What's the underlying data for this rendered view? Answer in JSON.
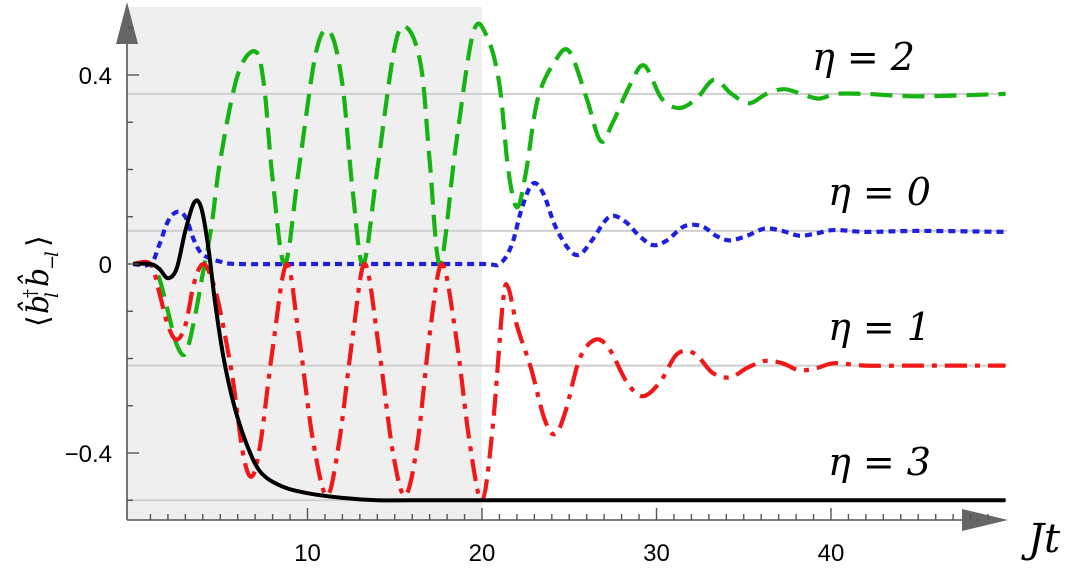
{
  "chart_data": {
    "type": "line",
    "xlabel": "Jt",
    "ylabel": "⟨b̂†_l b̂_−l⟩",
    "xlim": [
      0,
      50
    ],
    "ylim": [
      -0.56,
      0.53
    ],
    "x_ticks": [
      10,
      20,
      30,
      40
    ],
    "x_tick_labels": [
      "10",
      "20",
      "30",
      "40"
    ],
    "y_ticks": [
      -0.4,
      0,
      0.4
    ],
    "y_tick_labels": [
      "−0.4",
      "0",
      "0.4"
    ],
    "shaded_region": {
      "x_range": [
        0,
        20
      ],
      "color": "#efefef"
    },
    "grid": false,
    "series": [
      {
        "name": "η = 2",
        "label_text": "η = 2",
        "color": "#17b312",
        "style": "dashed",
        "steady_state": 0.36,
        "points": [
          [
            0,
            0
          ],
          [
            1,
            0
          ],
          [
            1.5,
            -0.03
          ],
          [
            2,
            -0.1
          ],
          [
            2.5,
            -0.17
          ],
          [
            3,
            -0.19
          ],
          [
            3.5,
            -0.12
          ],
          [
            4,
            -0.02
          ],
          [
            4.5,
            0.08
          ],
          [
            5,
            0.22
          ],
          [
            6,
            0.4
          ],
          [
            7,
            0.45
          ],
          [
            7.5,
            0.38
          ],
          [
            8,
            0.18
          ],
          [
            8.7,
            0.0
          ],
          [
            9.5,
            0.2
          ],
          [
            10.5,
            0.45
          ],
          [
            11.3,
            0.49
          ],
          [
            12,
            0.38
          ],
          [
            12.6,
            0.15
          ],
          [
            13.2,
            0.0
          ],
          [
            14,
            0.2
          ],
          [
            15,
            0.46
          ],
          [
            15.7,
            0.5
          ],
          [
            16.5,
            0.42
          ],
          [
            17,
            0.22
          ],
          [
            17.6,
            0.0
          ],
          [
            18.5,
            0.25
          ],
          [
            19.5,
            0.49
          ],
          [
            20.3,
            0.48
          ],
          [
            21,
            0.38
          ],
          [
            21.5,
            0.2
          ],
          [
            22,
            0.12
          ],
          [
            22.5,
            0.19
          ],
          [
            23.2,
            0.35
          ],
          [
            24.2,
            0.43
          ],
          [
            25,
            0.45
          ],
          [
            26,
            0.35
          ],
          [
            26.8,
            0.26
          ],
          [
            27.5,
            0.3
          ],
          [
            28.5,
            0.38
          ],
          [
            29.3,
            0.42
          ],
          [
            30.3,
            0.35
          ],
          [
            31.3,
            0.33
          ],
          [
            32.3,
            0.35
          ],
          [
            33.3,
            0.39
          ],
          [
            34.3,
            0.36
          ],
          [
            35.3,
            0.34
          ],
          [
            36.3,
            0.36
          ],
          [
            37.3,
            0.37
          ],
          [
            38.3,
            0.36
          ],
          [
            39.3,
            0.35
          ],
          [
            40.3,
            0.36
          ],
          [
            42,
            0.36
          ],
          [
            45,
            0.355
          ],
          [
            50,
            0.36
          ]
        ]
      },
      {
        "name": "η = 0",
        "label_text": "η = 0",
        "color": "#1f1fe0",
        "style": "dotted",
        "steady_state": 0.07,
        "points": [
          [
            0,
            0
          ],
          [
            1,
            0
          ],
          [
            1.5,
            0.04
          ],
          [
            2,
            0.09
          ],
          [
            2.5,
            0.11
          ],
          [
            3,
            0.1
          ],
          [
            3.5,
            0.05
          ],
          [
            4,
            0.02
          ],
          [
            5,
            0.005
          ],
          [
            6,
            0.0
          ],
          [
            10,
            0.0
          ],
          [
            15,
            0.0
          ],
          [
            20,
            0.0
          ],
          [
            21,
            0.0
          ],
          [
            21.7,
            0.04
          ],
          [
            22.3,
            0.12
          ],
          [
            22.9,
            0.17
          ],
          [
            23.5,
            0.15
          ],
          [
            24.2,
            0.08
          ],
          [
            25,
            0.03
          ],
          [
            25.6,
            0.02
          ],
          [
            26.3,
            0.05
          ],
          [
            27.3,
            0.1
          ],
          [
            28.2,
            0.09
          ],
          [
            29,
            0.06
          ],
          [
            29.8,
            0.04
          ],
          [
            30.6,
            0.05
          ],
          [
            31.6,
            0.08
          ],
          [
            32.6,
            0.08
          ],
          [
            33.4,
            0.06
          ],
          [
            34.2,
            0.05
          ],
          [
            35.2,
            0.06
          ],
          [
            36.2,
            0.075
          ],
          [
            37.2,
            0.07
          ],
          [
            38.2,
            0.06
          ],
          [
            39.2,
            0.065
          ],
          [
            40.2,
            0.072
          ],
          [
            42,
            0.068
          ],
          [
            45,
            0.07
          ],
          [
            50,
            0.068
          ]
        ]
      },
      {
        "name": "η = 1",
        "label_text": "η = 1",
        "color": "#f01818",
        "style": "dashdot",
        "steady_state": -0.215,
        "points": [
          [
            0,
            0
          ],
          [
            1,
            0
          ],
          [
            1.5,
            -0.06
          ],
          [
            2,
            -0.13
          ],
          [
            2.5,
            -0.16
          ],
          [
            3,
            -0.13
          ],
          [
            3.5,
            -0.04
          ],
          [
            4,
            0.0
          ],
          [
            4.5,
            -0.03
          ],
          [
            5,
            -0.1
          ],
          [
            5.7,
            -0.24
          ],
          [
            6.3,
            -0.4
          ],
          [
            6.8,
            -0.45
          ],
          [
            7.3,
            -0.38
          ],
          [
            8,
            -0.18
          ],
          [
            8.8,
            0.0
          ],
          [
            9.5,
            -0.15
          ],
          [
            10.3,
            -0.37
          ],
          [
            11.1,
            -0.49
          ],
          [
            11.8,
            -0.38
          ],
          [
            12.6,
            -0.15
          ],
          [
            13.3,
            0.0
          ],
          [
            14.1,
            -0.18
          ],
          [
            14.9,
            -0.4
          ],
          [
            15.6,
            -0.49
          ],
          [
            16.3,
            -0.38
          ],
          [
            17,
            -0.15
          ],
          [
            17.7,
            0.0
          ],
          [
            18.5,
            -0.15
          ],
          [
            19.3,
            -0.38
          ],
          [
            20.0,
            -0.5
          ],
          [
            20.6,
            -0.35
          ],
          [
            21.2,
            -0.08
          ],
          [
            21.5,
            -0.05
          ],
          [
            22,
            -0.13
          ],
          [
            22.8,
            -0.22
          ],
          [
            23.6,
            -0.33
          ],
          [
            24.2,
            -0.36
          ],
          [
            24.8,
            -0.31
          ],
          [
            25.6,
            -0.2
          ],
          [
            26.5,
            -0.16
          ],
          [
            27.3,
            -0.18
          ],
          [
            28.3,
            -0.25
          ],
          [
            29.2,
            -0.28
          ],
          [
            30.2,
            -0.25
          ],
          [
            31.2,
            -0.19
          ],
          [
            32.2,
            -0.19
          ],
          [
            33.2,
            -0.23
          ],
          [
            34.2,
            -0.24
          ],
          [
            35.2,
            -0.22
          ],
          [
            36.2,
            -0.205
          ],
          [
            37.2,
            -0.21
          ],
          [
            38.2,
            -0.225
          ],
          [
            39.2,
            -0.22
          ],
          [
            40.2,
            -0.21
          ],
          [
            42,
            -0.215
          ],
          [
            45,
            -0.215
          ],
          [
            50,
            -0.215
          ]
        ]
      },
      {
        "name": "η = 3",
        "label_text": "η = 3",
        "color": "#000000",
        "style": "solid",
        "steady_state": -0.5,
        "points": [
          [
            0,
            0
          ],
          [
            1,
            0
          ],
          [
            1.5,
            -0.01
          ],
          [
            2,
            -0.03
          ],
          [
            2.5,
            -0.01
          ],
          [
            3,
            0.07
          ],
          [
            3.5,
            0.13
          ],
          [
            3.9,
            0.12
          ],
          [
            4.3,
            0.04
          ],
          [
            4.7,
            -0.08
          ],
          [
            5.2,
            -0.2
          ],
          [
            5.8,
            -0.3
          ],
          [
            6.5,
            -0.38
          ],
          [
            7.3,
            -0.44
          ],
          [
            8.5,
            -0.47
          ],
          [
            10,
            -0.485
          ],
          [
            12,
            -0.495
          ],
          [
            14,
            -0.5
          ],
          [
            16,
            -0.5
          ],
          [
            20,
            -0.5
          ],
          [
            30,
            -0.5
          ],
          [
            40,
            -0.5
          ],
          [
            50,
            -0.5
          ]
        ]
      }
    ]
  }
}
